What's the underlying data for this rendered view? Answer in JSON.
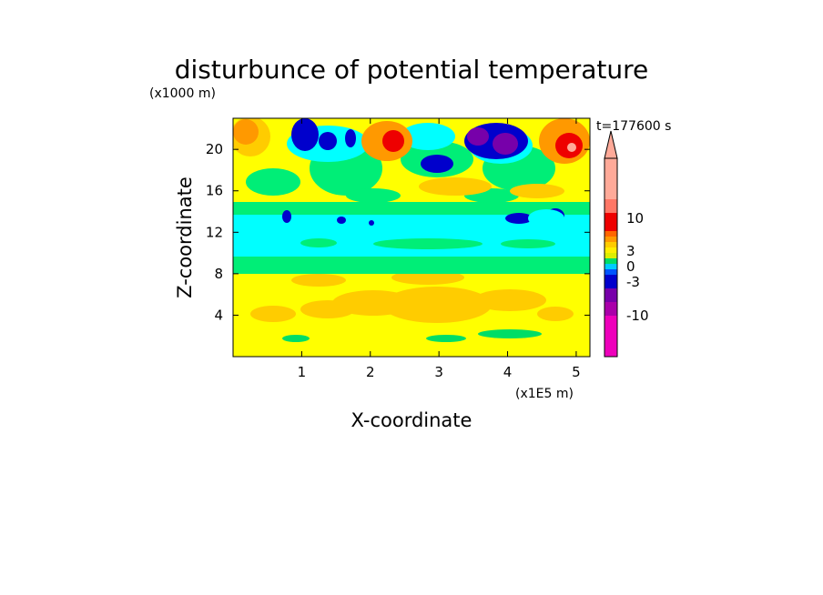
{
  "chart_data": {
    "type": "heatmap",
    "title": "disturbunce of potential temperature",
    "y_unit_note": "(x1000 m)",
    "x_unit_note": "(x1E5 m)",
    "xlabel": "X-coordinate",
    "ylabel": "Z-coordinate",
    "time_label": "t=177600 s",
    "xlim": [
      0,
      5.2
    ],
    "ylim": [
      0,
      23
    ],
    "x_ticks": [
      1,
      2,
      3,
      4,
      5
    ],
    "y_ticks": [
      4,
      8,
      12,
      16,
      20
    ],
    "grid": false,
    "colorbar": {
      "placement": "right",
      "tick_labels": [
        "10",
        "3",
        "0",
        "-3",
        "-10"
      ],
      "colors": [
        "#ee00bb",
        "#aa00aa",
        "#7700aa",
        "#0000cc",
        "#0055ff",
        "#00ccff",
        "#00dd66",
        "#ddee00",
        "#ffee00",
        "#ffcc00",
        "#ff9900",
        "#ff6600",
        "#ee0000",
        "#ff7766",
        "#ffaa99"
      ]
    },
    "regions": [
      {
        "kind": "band",
        "z": [
          0,
          8
        ],
        "value": 1,
        "color": "#ffff00"
      },
      {
        "kind": "band",
        "z": [
          8,
          9.5
        ],
        "value": -1.5,
        "color": "#00ee77"
      },
      {
        "kind": "band",
        "z": [
          9.5,
          14
        ],
        "value": -2.5,
        "color": "#00ffff"
      },
      {
        "kind": "band",
        "z": [
          14,
          23
        ],
        "value": 1,
        "color": "#ffff00"
      }
    ]
  }
}
